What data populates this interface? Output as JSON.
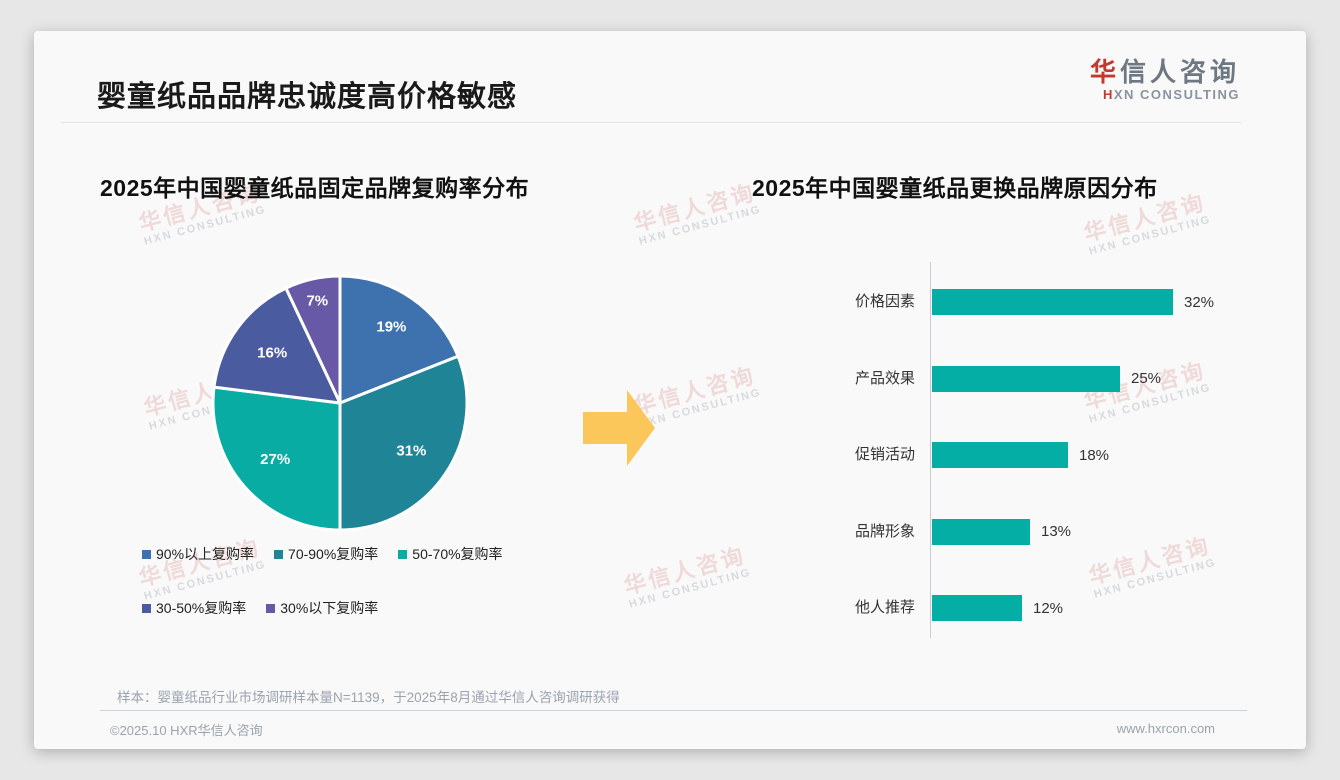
{
  "header": {
    "title": "婴童纸品品牌忠诚度高价格敏感",
    "logo": {
      "brand_highlight": "华",
      "brand_rest": "信人咨询",
      "sub_highlight": "H",
      "sub_rest": "XN CONSULTING"
    }
  },
  "watermark": {
    "cn": "华信人咨询",
    "en": "HXN CONSULTING"
  },
  "colors": {
    "accent_red": "#C23A2F",
    "arrow_yellow": "#FBC75B",
    "bar_teal": "#05AEA4",
    "pie_palette": [
      "#3E72AE",
      "#1F8495",
      "#09ACA2",
      "#4A5BA0",
      "#6759A6"
    ]
  },
  "chart_data": [
    {
      "type": "pie",
      "title": "2025年中国婴童纸品固定品牌复购率分布",
      "labels": [
        "90%以上复购率",
        "70-90%复购率",
        "50-70%复购率",
        "30-50%复购率",
        "30%以下复购率"
      ],
      "values": [
        19,
        31,
        27,
        16,
        7
      ],
      "colors": [
        "#3E72AE",
        "#1F8495",
        "#09ACA2",
        "#4A5BA0",
        "#6759A6"
      ],
      "value_suffix": "%",
      "start_angle_deg": 0,
      "direction": "clockwise",
      "legend_position": "bottom",
      "slice_label_color": "#FFFFFF"
    },
    {
      "type": "bar",
      "title": "2025年中国婴童纸品更换品牌原因分布",
      "orientation": "horizontal",
      "categories": [
        "价格因素",
        "产品效果",
        "促销活动",
        "品牌形象",
        "他人推荐"
      ],
      "values": [
        32,
        25,
        18,
        13,
        12
      ],
      "bar_color": "#05AEA4",
      "value_suffix": "%",
      "xlim": [
        0,
        35
      ],
      "grid": false,
      "axis_line": true
    }
  ],
  "footnote": "样本：婴童纸品行业市场调研样本量N=1139，于2025年8月通过华信人咨询调研获得",
  "footer": {
    "copyright": "©2025.10 HXR华信人咨询",
    "website": "www.hxrcon.com"
  }
}
